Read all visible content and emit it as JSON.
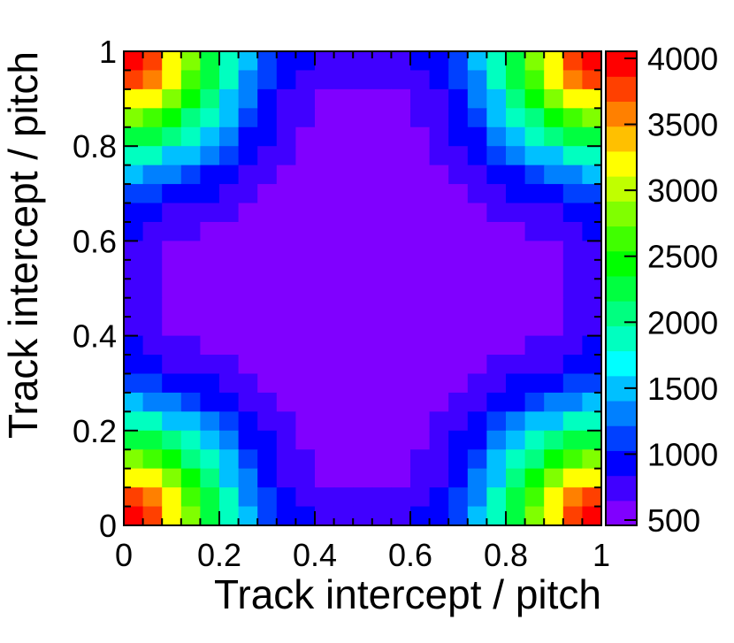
{
  "chart_data": {
    "type": "heatmap",
    "title": "",
    "xlabel": "Track intercept / pitch",
    "ylabel": "Track intercept / pitch",
    "xlim": [
      0,
      1
    ],
    "ylim": [
      0,
      1
    ],
    "bins": [
      25,
      25
    ],
    "xticks": [
      "0",
      "0.2",
      "0.4",
      "0.6",
      "0.8",
      "1"
    ],
    "yticks": [
      "0",
      "0.2",
      "0.4",
      "0.6",
      "0.8",
      "1"
    ],
    "colorbar": {
      "range": [
        500,
        4000
      ],
      "ticks": [
        "500",
        "1000",
        "1500",
        "2000",
        "2500",
        "3000",
        "3500",
        "4000"
      ],
      "palette": [
        "#8000ff",
        "#4000ff",
        "#0000ff",
        "#0040ff",
        "#0080ff",
        "#00c0ff",
        "#00ffff",
        "#00ffc0",
        "#00ff80",
        "#00ff40",
        "#00ff00",
        "#40ff00",
        "#80ff00",
        "#c0ff00",
        "#ffff00",
        "#ffc000",
        "#ff8000",
        "#ff4000",
        "#ff0000"
      ]
    },
    "grid": false,
    "values_description": "counts per bin; high (~4000) at the four corners, low (~500) in the center",
    "values": [
      [
        4000,
        3700,
        3200,
        2800,
        2300,
        1900,
        1500,
        1200,
        1000,
        900,
        800,
        800,
        700,
        800,
        800,
        900,
        1000,
        1200,
        1500,
        1900,
        2300,
        2800,
        3200,
        3700,
        4000
      ],
      [
        3700,
        3500,
        3100,
        2700,
        2200,
        1800,
        1400,
        1100,
        900,
        800,
        700,
        700,
        700,
        700,
        700,
        800,
        900,
        1100,
        1400,
        1800,
        2200,
        2700,
        3100,
        3500,
        3700
      ],
      [
        3200,
        3100,
        2800,
        2400,
        2000,
        1600,
        1300,
        1000,
        850,
        750,
        650,
        650,
        600,
        650,
        650,
        750,
        850,
        1000,
        1300,
        1600,
        2000,
        2400,
        2800,
        3100,
        3200
      ],
      [
        2800,
        2700,
        2400,
        2100,
        1800,
        1450,
        1150,
        950,
        800,
        700,
        650,
        600,
        600,
        600,
        650,
        700,
        800,
        950,
        1150,
        1450,
        1800,
        2100,
        2400,
        2700,
        2800
      ],
      [
        2300,
        2200,
        2000,
        1800,
        1550,
        1300,
        1050,
        900,
        750,
        650,
        600,
        550,
        550,
        550,
        600,
        650,
        750,
        900,
        1050,
        1300,
        1550,
        1800,
        2000,
        2200,
        2300
      ],
      [
        1900,
        1800,
        1600,
        1450,
        1300,
        1100,
        950,
        800,
        700,
        600,
        550,
        550,
        500,
        550,
        550,
        600,
        700,
        800,
        950,
        1100,
        1300,
        1450,
        1600,
        1800,
        1900
      ],
      [
        1500,
        1400,
        1300,
        1150,
        1050,
        950,
        850,
        750,
        650,
        600,
        550,
        500,
        500,
        500,
        550,
        600,
        650,
        750,
        850,
        950,
        1050,
        1150,
        1300,
        1400,
        1500
      ],
      [
        1200,
        1100,
        1000,
        950,
        900,
        800,
        750,
        650,
        600,
        550,
        500,
        500,
        500,
        500,
        500,
        550,
        600,
        650,
        750,
        800,
        900,
        950,
        1000,
        1100,
        1200
      ],
      [
        1000,
        900,
        850,
        800,
        750,
        700,
        650,
        600,
        550,
        500,
        500,
        500,
        500,
        500,
        500,
        500,
        550,
        600,
        650,
        700,
        750,
        800,
        850,
        900,
        1000
      ],
      [
        900,
        800,
        750,
        700,
        650,
        600,
        600,
        550,
        500,
        500,
        500,
        500,
        500,
        500,
        500,
        500,
        500,
        550,
        600,
        600,
        650,
        700,
        750,
        800,
        900
      ],
      [
        800,
        700,
        650,
        650,
        600,
        550,
        550,
        500,
        500,
        500,
        500,
        500,
        500,
        500,
        500,
        500,
        500,
        500,
        550,
        550,
        600,
        650,
        650,
        700,
        800
      ],
      [
        800,
        700,
        650,
        600,
        550,
        550,
        500,
        500,
        500,
        500,
        500,
        500,
        500,
        500,
        500,
        500,
        500,
        500,
        500,
        550,
        550,
        600,
        650,
        700,
        800
      ],
      [
        700,
        700,
        600,
        600,
        550,
        500,
        500,
        500,
        500,
        500,
        500,
        500,
        500,
        500,
        500,
        500,
        500,
        500,
        500,
        500,
        550,
        600,
        600,
        700,
        700
      ],
      [
        800,
        700,
        650,
        600,
        550,
        550,
        500,
        500,
        500,
        500,
        500,
        500,
        500,
        500,
        500,
        500,
        500,
        500,
        500,
        550,
        550,
        600,
        650,
        700,
        800
      ],
      [
        800,
        700,
        650,
        650,
        600,
        550,
        550,
        500,
        500,
        500,
        500,
        500,
        500,
        500,
        500,
        500,
        500,
        500,
        550,
        550,
        600,
        650,
        650,
        700,
        800
      ],
      [
        900,
        800,
        750,
        700,
        650,
        600,
        600,
        550,
        500,
        500,
        500,
        500,
        500,
        500,
        500,
        500,
        500,
        550,
        600,
        600,
        650,
        700,
        750,
        800,
        900
      ],
      [
        1000,
        900,
        850,
        800,
        750,
        700,
        650,
        600,
        550,
        500,
        500,
        500,
        500,
        500,
        500,
        500,
        550,
        600,
        650,
        700,
        750,
        800,
        850,
        900,
        1000
      ],
      [
        1200,
        1100,
        1000,
        950,
        900,
        800,
        750,
        650,
        600,
        550,
        500,
        500,
        500,
        500,
        500,
        550,
        600,
        650,
        750,
        800,
        900,
        950,
        1000,
        1100,
        1200
      ],
      [
        1500,
        1400,
        1300,
        1150,
        1050,
        950,
        850,
        750,
        650,
        600,
        550,
        500,
        500,
        500,
        550,
        600,
        650,
        750,
        850,
        950,
        1050,
        1150,
        1300,
        1400,
        1500
      ],
      [
        1900,
        1800,
        1600,
        1450,
        1300,
        1100,
        950,
        800,
        700,
        600,
        550,
        550,
        500,
        550,
        550,
        600,
        700,
        800,
        950,
        1100,
        1300,
        1450,
        1600,
        1800,
        1900
      ],
      [
        2300,
        2200,
        2000,
        1800,
        1550,
        1300,
        1050,
        900,
        750,
        650,
        600,
        550,
        550,
        550,
        600,
        650,
        750,
        900,
        1050,
        1300,
        1550,
        1800,
        2000,
        2200,
        2300
      ],
      [
        2800,
        2700,
        2400,
        2100,
        1800,
        1450,
        1150,
        950,
        800,
        700,
        650,
        600,
        600,
        600,
        650,
        700,
        800,
        950,
        1150,
        1450,
        1800,
        2100,
        2400,
        2700,
        2800
      ],
      [
        3200,
        3100,
        2800,
        2400,
        2000,
        1600,
        1300,
        1000,
        850,
        750,
        650,
        650,
        600,
        650,
        650,
        750,
        850,
        1000,
        1300,
        1600,
        2000,
        2400,
        2800,
        3100,
        3200
      ],
      [
        3700,
        3500,
        3100,
        2700,
        2200,
        1800,
        1400,
        1100,
        900,
        800,
        700,
        700,
        700,
        700,
        700,
        800,
        900,
        1100,
        1400,
        1800,
        2200,
        2700,
        3100,
        3500,
        3700
      ],
      [
        4000,
        3700,
        3200,
        2800,
        2300,
        1900,
        1500,
        1200,
        1000,
        900,
        800,
        800,
        700,
        800,
        800,
        900,
        1000,
        1200,
        1500,
        1900,
        2300,
        2800,
        3200,
        3700,
        4000
      ]
    ]
  }
}
